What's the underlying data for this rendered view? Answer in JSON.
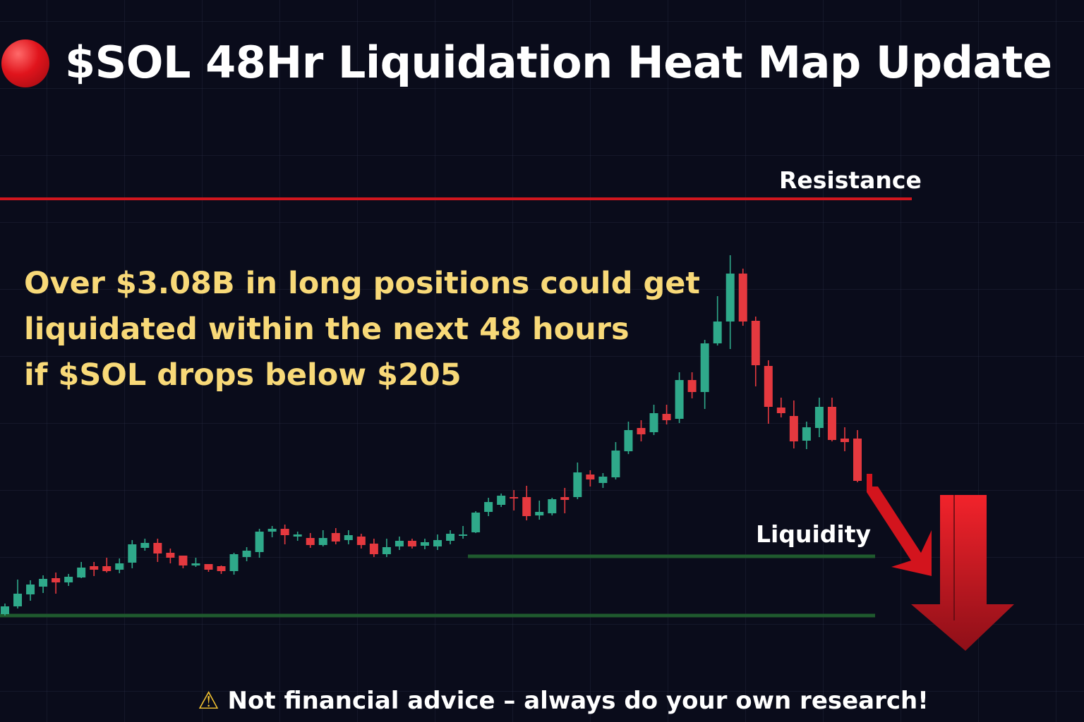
{
  "title": "$SOL 48Hr Liquidation Heat Map Update",
  "title_icon": "red-circle-icon",
  "message_lines": [
    "Over $3.08B in long positions could get",
    "liquidated within the next 48 hours",
    "if $SOL drops below $205"
  ],
  "footer": {
    "icon": "warning-icon",
    "icon_glyph": "⚠",
    "text": "Not financial advice – always do your own research!"
  },
  "colors": {
    "background": "#0a0c1b",
    "bullish": "#2fa98a",
    "bearish": "#e5393f",
    "resistance": "#d0161e",
    "liquidity": "#1f5a2e",
    "message": "#f8d978",
    "arrow": "#e3161f"
  },
  "chart_data": {
    "type": "candlestick",
    "title": "",
    "xlabel": "",
    "ylabel": "",
    "grid": true,
    "axes_visible": false,
    "ylim": [
      0,
      64
    ],
    "candle_fields": [
      "open",
      "close",
      "high",
      "low"
    ],
    "candles": [
      [
        2.9,
        4.0,
        4.4,
        2.7
      ],
      [
        4.0,
        5.8,
        7.8,
        3.7
      ],
      [
        5.7,
        7.1,
        7.7,
        4.8
      ],
      [
        6.8,
        7.9,
        8.4,
        5.9
      ],
      [
        8.0,
        7.4,
        8.8,
        5.8
      ],
      [
        7.4,
        8.2,
        8.6,
        6.9
      ],
      [
        8.1,
        9.5,
        10.3,
        8.0
      ],
      [
        9.7,
        9.2,
        10.3,
        8.3
      ],
      [
        9.7,
        9.0,
        10.9,
        8.8
      ],
      [
        9.2,
        10.1,
        10.8,
        8.7
      ],
      [
        10.2,
        12.8,
        13.4,
        9.4
      ],
      [
        12.3,
        13.0,
        13.6,
        11.9
      ],
      [
        13.0,
        11.5,
        13.6,
        10.3
      ],
      [
        11.6,
        10.9,
        12.2,
        10.1
      ],
      [
        11.2,
        9.8,
        11.2,
        9.4
      ],
      [
        9.8,
        10.1,
        10.9,
        9.6
      ],
      [
        10.0,
        9.2,
        10.0,
        8.9
      ],
      [
        9.7,
        9.0,
        9.8,
        8.6
      ],
      [
        9.0,
        11.4,
        11.6,
        8.5
      ],
      [
        11.0,
        11.9,
        12.4,
        10.4
      ],
      [
        11.7,
        14.6,
        15.0,
        10.9
      ],
      [
        14.6,
        15.0,
        15.4,
        13.8
      ],
      [
        15.0,
        14.1,
        15.6,
        12.8
      ],
      [
        13.9,
        14.2,
        14.6,
        13.3
      ],
      [
        13.7,
        12.7,
        14.4,
        12.3
      ],
      [
        12.7,
        13.7,
        14.8,
        12.5
      ],
      [
        14.4,
        13.2,
        15.1,
        12.8
      ],
      [
        13.4,
        14.1,
        14.8,
        12.8
      ],
      [
        13.9,
        12.7,
        14.3,
        12.2
      ],
      [
        12.9,
        11.4,
        13.6,
        11.0
      ],
      [
        11.4,
        12.4,
        13.6,
        11.0
      ],
      [
        12.5,
        13.3,
        13.9,
        12.0
      ],
      [
        13.3,
        12.5,
        13.6,
        12.2
      ],
      [
        12.6,
        13.1,
        13.6,
        12.1
      ],
      [
        12.5,
        13.4,
        14.2,
        12.0
      ],
      [
        13.3,
        14.3,
        14.8,
        12.8
      ],
      [
        14.0,
        14.2,
        15.4,
        13.6
      ],
      [
        14.5,
        17.3,
        17.5,
        14.4
      ],
      [
        17.4,
        18.8,
        19.4,
        16.8
      ],
      [
        18.4,
        19.7,
        20.0,
        18.1
      ],
      [
        19.5,
        19.3,
        20.5,
        17.6
      ],
      [
        19.5,
        16.8,
        21.1,
        16.2
      ],
      [
        16.9,
        17.4,
        19.0,
        16.3
      ],
      [
        17.2,
        19.2,
        19.4,
        16.9
      ],
      [
        19.5,
        19.1,
        20.8,
        17.2
      ],
      [
        19.5,
        23.0,
        24.4,
        19.2
      ],
      [
        22.7,
        22.0,
        23.3,
        21.0
      ],
      [
        21.5,
        22.4,
        22.9,
        20.8
      ],
      [
        22.3,
        26.1,
        27.3,
        22.0
      ],
      [
        26.0,
        29.0,
        30.2,
        25.6
      ],
      [
        29.3,
        28.4,
        30.4,
        27.4
      ],
      [
        28.7,
        31.4,
        32.6,
        28.3
      ],
      [
        31.3,
        30.4,
        32.6,
        29.8
      ],
      [
        30.6,
        36.1,
        37.2,
        30.0
      ],
      [
        36.1,
        34.4,
        37.2,
        33.5
      ],
      [
        34.4,
        41.3,
        41.8,
        32.0
      ],
      [
        41.3,
        44.4,
        48.0,
        41.0
      ],
      [
        44.4,
        51.2,
        53.8,
        40.5
      ],
      [
        51.2,
        44.4,
        51.9,
        43.8
      ],
      [
        44.5,
        38.2,
        45.1,
        35.2
      ],
      [
        38.1,
        32.3,
        38.9,
        29.9
      ],
      [
        32.2,
        31.4,
        33.6,
        30.8
      ],
      [
        31.0,
        27.4,
        33.2,
        26.4
      ],
      [
        27.5,
        29.4,
        30.2,
        26.3
      ],
      [
        29.3,
        32.3,
        33.6,
        28.0
      ],
      [
        32.3,
        27.6,
        33.6,
        27.4
      ],
      [
        27.8,
        27.3,
        29.4,
        26.0
      ],
      [
        27.8,
        21.8,
        29.0,
        21.6
      ]
    ],
    "levels": [
      {
        "label": "Resistance",
        "value": 61.8
      },
      {
        "label": "Liquidity",
        "value": 11.1
      },
      {
        "label": "",
        "value": 2.7
      }
    ],
    "annotations": [
      "downward-arrow",
      "large-down-arrow"
    ]
  }
}
